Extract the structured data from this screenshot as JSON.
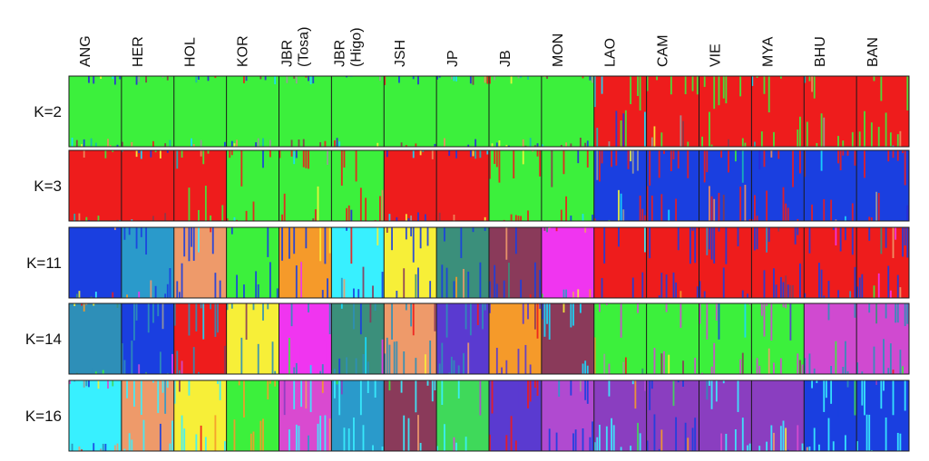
{
  "chart_data": {
    "type": "bar",
    "populations": [
      [
        "ANG"
      ],
      [
        "HER"
      ],
      [
        "HOL"
      ],
      [
        "KOR"
      ],
      [
        "JBR",
        "(Tosa)"
      ],
      [
        "JBR",
        "(Higo)"
      ],
      [
        "JSH"
      ],
      [
        "JP"
      ],
      [
        "JB"
      ],
      [
        "MON"
      ],
      [
        "LAO"
      ],
      [
        "CAM"
      ],
      [
        "VIE"
      ],
      [
        "MYA"
      ],
      [
        "BHU"
      ],
      [
        "BAN"
      ]
    ],
    "rows": [
      {
        "k_label": "K=2",
        "cluster_colors": [
          "#3cf03c",
          "#ee1c1c",
          "#1a3fe0",
          "#18b7b7",
          "#2a2ad8",
          "#ee8d5e",
          "#18dbff",
          "#f3f53a",
          "#8a3a4a",
          "#9a9a9a"
        ],
        "fill": [
          0,
          0,
          0,
          0,
          0,
          0,
          0,
          0,
          0,
          0,
          1,
          1,
          1,
          1,
          1,
          1
        ],
        "mix": [
          0,
          0,
          0,
          0,
          0,
          0,
          0,
          0,
          0,
          0,
          0,
          0,
          0,
          0,
          0,
          0
        ]
      },
      {
        "k_label": "K=3",
        "cluster_colors": [
          "#ee1c1c",
          "#3cf03c",
          "#1a3fe0",
          "#18b7b7",
          "#2a2ad8",
          "#ee8d5e",
          "#18dbff",
          "#f3f53a",
          "#8a3a4a",
          "#9a9a9a"
        ],
        "fill": [
          0,
          0,
          0,
          1,
          1,
          1,
          0,
          0,
          1,
          1,
          2,
          2,
          2,
          2,
          2,
          2
        ],
        "mix": [
          0,
          0,
          1,
          0,
          0,
          0,
          0,
          0,
          0,
          0,
          0,
          0,
          0,
          0,
          0,
          0
        ]
      },
      {
        "k_label": "K=11",
        "cluster_colors": [
          "#1a3fe0",
          "#2a9acb",
          "#ee9a6a",
          "#3cf03c",
          "#f59a2a",
          "#38f0ff",
          "#f7ef38",
          "#3b8f7b",
          "#8a3a5a",
          "#f035f0",
          "#ee1c1c"
        ],
        "fill": [
          0,
          1,
          2,
          3,
          4,
          5,
          6,
          7,
          8,
          9,
          10,
          10,
          10,
          10,
          10,
          10
        ],
        "mix": [
          0,
          0,
          0,
          0,
          0,
          0,
          0,
          0,
          0,
          9,
          0,
          0,
          0,
          0,
          0,
          0
        ]
      },
      {
        "k_label": "K=14",
        "cluster_colors": [
          "#2e8fb8",
          "#1a3fe0",
          "#ee1c1c",
          "#f7ef38",
          "#f035f0",
          "#3b8f7b",
          "#ee9a6a",
          "#5a3ad0",
          "#f59a2a",
          "#8a3a5a",
          "#3cf03c",
          "#d04ad0",
          "#18dbff",
          "#9a9a9a"
        ],
        "fill": [
          0,
          1,
          2,
          3,
          4,
          5,
          6,
          7,
          8,
          9,
          10,
          10,
          10,
          10,
          11,
          11
        ],
        "mix": [
          0,
          0,
          0,
          0,
          0,
          0,
          0,
          0,
          7,
          12,
          11,
          11,
          11,
          11,
          0,
          0
        ]
      },
      {
        "k_label": "K=16",
        "cluster_colors": [
          "#38f0ff",
          "#ee9a6a",
          "#f7ef38",
          "#3cf03c",
          "#d94ad0",
          "#2a9acb",
          "#8a3a5a",
          "#3fd95a",
          "#ee1c1c",
          "#b04ad0",
          "#8a3ec0",
          "#1a3fe0",
          "#f59a2a",
          "#2e8fb8",
          "#5a3ad0",
          "#9a9a9a"
        ],
        "fill": [
          0,
          1,
          2,
          3,
          4,
          5,
          6,
          7,
          14,
          9,
          10,
          10,
          10,
          10,
          11,
          11
        ],
        "mix": [
          0,
          0,
          0,
          12,
          0,
          0,
          0,
          0,
          8,
          11,
          0,
          11,
          0,
          0,
          0,
          0
        ]
      }
    ]
  }
}
